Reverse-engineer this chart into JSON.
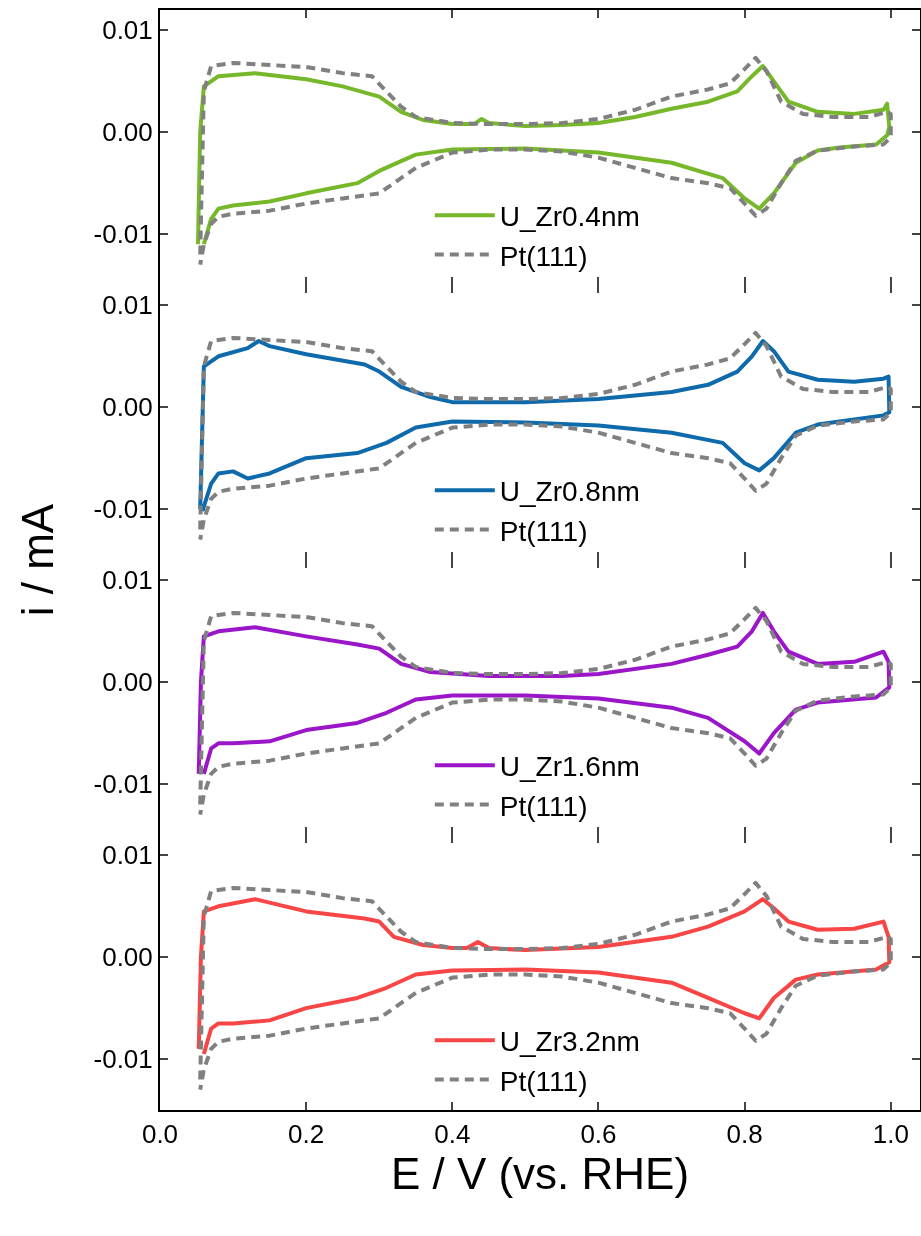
{
  "chart_data": [
    {
      "type": "line",
      "ylabel": "i / mA",
      "legend": "bottom",
      "tick_labels": "y",
      "xlim": [
        0,
        1.04
      ],
      "ylim": [
        -0.015,
        0.012
      ],
      "xticks": [
        {
          "value": 0,
          "label": null
        },
        {
          "value": 0.2,
          "label": null
        },
        {
          "value": 0.4,
          "label": null
        },
        {
          "value": 0.6,
          "label": null
        },
        {
          "value": 0.8,
          "label": null
        },
        {
          "value": 1,
          "label": null
        }
      ],
      "yticks": [
        {
          "value": -0.01,
          "label": "-0.01"
        },
        {
          "value": 0,
          "label": "0.00"
        },
        {
          "value": 0.01,
          "label": "0.01"
        }
      ],
      "series": [
        {
          "name": "U_Zr0.4nm",
          "color": "#76b82a",
          "line_style": "solid",
          "x": [
            0.052,
            0.055,
            0.06,
            0.08,
            0.13,
            0.2,
            0.25,
            0.3,
            0.33,
            0.36,
            0.4,
            0.43,
            0.44,
            0.45,
            0.5,
            0.55,
            0.6,
            0.65,
            0.7,
            0.75,
            0.79,
            0.81,
            0.825,
            0.84,
            0.86,
            0.9,
            0.95,
            0.99,
            0.995,
            0.998,
            0.995,
            0.98,
            0.93,
            0.9,
            0.87,
            0.84,
            0.82,
            0.8,
            0.77,
            0.7,
            0.6,
            0.5,
            0.4,
            0.35,
            0.3,
            0.27,
            0.2,
            0.15,
            0.1,
            0.08,
            0.07,
            0.06
          ],
          "values": [
            -0.011,
            0.0,
            0.0045,
            0.0055,
            0.0058,
            0.0052,
            0.0045,
            0.0035,
            0.002,
            0.0012,
            0.0008,
            0.0008,
            0.0013,
            0.0009,
            0.0006,
            0.0007,
            0.0009,
            0.0015,
            0.0023,
            0.003,
            0.004,
            0.0055,
            0.0065,
            0.005,
            0.003,
            0.002,
            0.0018,
            0.0022,
            0.0028,
            0.0005,
            -0.0003,
            -0.0012,
            -0.0015,
            -0.0018,
            -0.003,
            -0.006,
            -0.0075,
            -0.0065,
            -0.0045,
            -0.003,
            -0.002,
            -0.0016,
            -0.0017,
            -0.0022,
            -0.0038,
            -0.005,
            -0.006,
            -0.0068,
            -0.0072,
            -0.0075,
            -0.0085,
            -0.011
          ]
        },
        {
          "name": "Pt(111)",
          "color": "#808080",
          "line_style": "dashed",
          "x": [
            0.055,
            0.06,
            0.07,
            0.1,
            0.15,
            0.2,
            0.25,
            0.29,
            0.31,
            0.33,
            0.35,
            0.4,
            0.45,
            0.5,
            0.55,
            0.6,
            0.65,
            0.7,
            0.75,
            0.78,
            0.8,
            0.815,
            0.83,
            0.85,
            0.88,
            0.92,
            0.97,
            0.995,
            1.0,
            1.0,
            0.99,
            0.95,
            0.9,
            0.87,
            0.85,
            0.83,
            0.815,
            0.8,
            0.78,
            0.75,
            0.7,
            0.65,
            0.6,
            0.55,
            0.5,
            0.45,
            0.4,
            0.35,
            0.32,
            0.3,
            0.25,
            0.2,
            0.15,
            0.1,
            0.08,
            0.07,
            0.06,
            0.055
          ],
          "values": [
            -0.012,
            0.004,
            0.0065,
            0.0068,
            0.0066,
            0.0064,
            0.0058,
            0.0055,
            0.004,
            0.0025,
            0.0015,
            0.0009,
            0.0008,
            0.0008,
            0.0009,
            0.0013,
            0.0022,
            0.0035,
            0.0042,
            0.0048,
            0.0062,
            0.0073,
            0.006,
            0.003,
            0.0018,
            0.0015,
            0.0015,
            0.002,
            0.0018,
            -0.0005,
            -0.0012,
            -0.0014,
            -0.0018,
            -0.0028,
            -0.005,
            -0.0075,
            -0.0082,
            -0.007,
            -0.0055,
            -0.005,
            -0.0045,
            -0.0035,
            -0.0025,
            -0.0019,
            -0.0017,
            -0.0017,
            -0.002,
            -0.0035,
            -0.005,
            -0.006,
            -0.0065,
            -0.007,
            -0.0077,
            -0.008,
            -0.0083,
            -0.009,
            -0.011,
            -0.013
          ]
        }
      ]
    },
    {
      "type": "line",
      "legend": "bottom",
      "tick_labels": "y",
      "xlim": [
        0,
        1.04
      ],
      "ylim": [
        -0.015,
        0.012
      ],
      "xticks": [
        {
          "value": 0,
          "label": null
        },
        {
          "value": 0.2,
          "label": null
        },
        {
          "value": 0.4,
          "label": null
        },
        {
          "value": 0.6,
          "label": null
        },
        {
          "value": 0.8,
          "label": null
        },
        {
          "value": 1,
          "label": null
        }
      ],
      "yticks": [
        {
          "value": -0.01,
          "label": "-0.01"
        },
        {
          "value": 0,
          "label": "0.00"
        },
        {
          "value": 0.01,
          "label": "0.01"
        }
      ],
      "series": [
        {
          "name": "U_Zr0.8nm",
          "color": "#0e6aab",
          "line_style": "solid",
          "x": [
            0.055,
            0.06,
            0.08,
            0.12,
            0.135,
            0.15,
            0.2,
            0.28,
            0.3,
            0.33,
            0.37,
            0.4,
            0.5,
            0.6,
            0.7,
            0.75,
            0.79,
            0.81,
            0.825,
            0.84,
            0.86,
            0.9,
            0.95,
            0.99,
            0.997,
            0.998,
            0.99,
            0.95,
            0.9,
            0.87,
            0.84,
            0.82,
            0.8,
            0.77,
            0.7,
            0.6,
            0.5,
            0.4,
            0.35,
            0.31,
            0.27,
            0.2,
            0.15,
            0.12,
            0.1,
            0.08,
            0.07,
            0.058
          ],
          "values": [
            -0.01,
            0.004,
            0.005,
            0.0058,
            0.0065,
            0.006,
            0.0052,
            0.0042,
            0.0035,
            0.002,
            0.001,
            0.0005,
            0.0005,
            0.0008,
            0.0015,
            0.0022,
            0.0035,
            0.005,
            0.0065,
            0.0055,
            0.0035,
            0.0027,
            0.0025,
            0.0028,
            0.003,
            -0.0005,
            -0.0008,
            -0.0012,
            -0.0017,
            -0.0025,
            -0.005,
            -0.0062,
            -0.0055,
            -0.0035,
            -0.0025,
            -0.0018,
            -0.0015,
            -0.0014,
            -0.002,
            -0.0035,
            -0.0045,
            -0.005,
            -0.0065,
            -0.007,
            -0.0063,
            -0.0065,
            -0.0075,
            -0.0102
          ]
        },
        {
          "name": "Pt(111)",
          "color": "#808080",
          "line_style": "dashed",
          "x": [
            0.055,
            0.06,
            0.07,
            0.1,
            0.15,
            0.2,
            0.25,
            0.29,
            0.31,
            0.33,
            0.35,
            0.4,
            0.45,
            0.5,
            0.55,
            0.6,
            0.65,
            0.7,
            0.75,
            0.78,
            0.8,
            0.815,
            0.83,
            0.85,
            0.88,
            0.92,
            0.97,
            0.995,
            1.0,
            1.0,
            0.99,
            0.95,
            0.9,
            0.87,
            0.85,
            0.83,
            0.815,
            0.8,
            0.78,
            0.75,
            0.7,
            0.65,
            0.6,
            0.55,
            0.5,
            0.45,
            0.4,
            0.35,
            0.32,
            0.3,
            0.25,
            0.2,
            0.15,
            0.1,
            0.08,
            0.07,
            0.06,
            0.055
          ],
          "values": [
            -0.012,
            0.004,
            0.0065,
            0.0068,
            0.0066,
            0.0064,
            0.0058,
            0.0055,
            0.004,
            0.0025,
            0.0015,
            0.0009,
            0.0008,
            0.0008,
            0.0009,
            0.0013,
            0.0022,
            0.0035,
            0.0042,
            0.0048,
            0.0062,
            0.0073,
            0.006,
            0.003,
            0.0018,
            0.0015,
            0.0015,
            0.002,
            0.0018,
            -0.0005,
            -0.0012,
            -0.0014,
            -0.0018,
            -0.0028,
            -0.005,
            -0.0075,
            -0.0082,
            -0.007,
            -0.0055,
            -0.005,
            -0.0045,
            -0.0035,
            -0.0025,
            -0.0019,
            -0.0017,
            -0.0017,
            -0.002,
            -0.0035,
            -0.005,
            -0.006,
            -0.0065,
            -0.007,
            -0.0077,
            -0.008,
            -0.0083,
            -0.009,
            -0.011,
            -0.013
          ]
        }
      ]
    },
    {
      "type": "line",
      "legend": "bottom",
      "tick_labels": "y",
      "xlim": [
        0,
        1.04
      ],
      "ylim": [
        -0.015,
        0.012
      ],
      "xticks": [
        {
          "value": 0,
          "label": null
        },
        {
          "value": 0.2,
          "label": null
        },
        {
          "value": 0.4,
          "label": null
        },
        {
          "value": 0.6,
          "label": null
        },
        {
          "value": 0.8,
          "label": null
        },
        {
          "value": 1,
          "label": null
        }
      ],
      "yticks": [
        {
          "value": -0.01,
          "label": "-0.01"
        },
        {
          "value": 0,
          "label": "0.00"
        },
        {
          "value": 0.01,
          "label": "0.01"
        }
      ],
      "series": [
        {
          "name": "U_Zr1.6nm",
          "color": "#9b16c9",
          "line_style": "solid",
          "x": [
            0.053,
            0.056,
            0.06,
            0.08,
            0.13,
            0.2,
            0.27,
            0.3,
            0.33,
            0.37,
            0.45,
            0.55,
            0.6,
            0.7,
            0.75,
            0.79,
            0.81,
            0.825,
            0.84,
            0.86,
            0.9,
            0.95,
            0.99,
            0.997,
            0.998,
            0.98,
            0.9,
            0.87,
            0.84,
            0.82,
            0.8,
            0.75,
            0.7,
            0.6,
            0.5,
            0.4,
            0.35,
            0.31,
            0.27,
            0.2,
            0.15,
            0.1,
            0.08,
            0.07,
            0.06
          ],
          "values": [
            -0.009,
            0.0,
            0.0045,
            0.005,
            0.0054,
            0.0045,
            0.0037,
            0.0033,
            0.0018,
            0.001,
            0.0006,
            0.0006,
            0.0008,
            0.0018,
            0.0027,
            0.0035,
            0.005,
            0.0068,
            0.005,
            0.003,
            0.0018,
            0.002,
            0.003,
            0.002,
            -0.0005,
            -0.0015,
            -0.002,
            -0.0027,
            -0.005,
            -0.007,
            -0.0058,
            -0.0035,
            -0.0025,
            -0.0016,
            -0.0013,
            -0.0013,
            -0.0017,
            -0.003,
            -0.004,
            -0.0047,
            -0.0058,
            -0.006,
            -0.006,
            -0.0065,
            -0.009
          ]
        },
        {
          "name": "Pt(111)",
          "color": "#808080",
          "line_style": "dashed",
          "x": [
            0.055,
            0.06,
            0.07,
            0.1,
            0.15,
            0.2,
            0.25,
            0.29,
            0.31,
            0.33,
            0.35,
            0.4,
            0.45,
            0.5,
            0.55,
            0.6,
            0.65,
            0.7,
            0.75,
            0.78,
            0.8,
            0.815,
            0.83,
            0.85,
            0.88,
            0.92,
            0.97,
            0.995,
            1.0,
            1.0,
            0.99,
            0.95,
            0.9,
            0.87,
            0.85,
            0.83,
            0.815,
            0.8,
            0.78,
            0.75,
            0.7,
            0.65,
            0.6,
            0.55,
            0.5,
            0.45,
            0.4,
            0.35,
            0.32,
            0.3,
            0.25,
            0.2,
            0.15,
            0.1,
            0.08,
            0.07,
            0.06,
            0.055
          ],
          "values": [
            -0.012,
            0.004,
            0.0065,
            0.0068,
            0.0066,
            0.0064,
            0.0058,
            0.0055,
            0.004,
            0.0025,
            0.0015,
            0.0009,
            0.0008,
            0.0008,
            0.0009,
            0.0013,
            0.0022,
            0.0035,
            0.0042,
            0.0048,
            0.0062,
            0.0073,
            0.006,
            0.003,
            0.0018,
            0.0015,
            0.0015,
            0.002,
            0.0018,
            -0.0005,
            -0.0012,
            -0.0014,
            -0.0018,
            -0.0028,
            -0.005,
            -0.0075,
            -0.0082,
            -0.007,
            -0.0055,
            -0.005,
            -0.0045,
            -0.0035,
            -0.0025,
            -0.0019,
            -0.0017,
            -0.0017,
            -0.002,
            -0.0035,
            -0.005,
            -0.006,
            -0.0065,
            -0.007,
            -0.0077,
            -0.008,
            -0.0083,
            -0.009,
            -0.011,
            -0.013
          ]
        }
      ]
    },
    {
      "type": "line",
      "xlabel": "E / V (vs. RHE)",
      "legend": "bottom",
      "xlim": [
        0,
        1.04
      ],
      "ylim": [
        -0.015,
        0.012
      ],
      "xticks": [
        {
          "value": 0,
          "label": "0.0"
        },
        {
          "value": 0.2,
          "label": "0.2"
        },
        {
          "value": 0.4,
          "label": "0.4"
        },
        {
          "value": 0.6,
          "label": "0.6"
        },
        {
          "value": 0.8,
          "label": "0.8"
        },
        {
          "value": 1,
          "label": "1.0"
        }
      ],
      "yticks": [
        {
          "value": -0.01,
          "label": "-0.01"
        },
        {
          "value": 0,
          "label": "0.00"
        },
        {
          "value": 0.01,
          "label": "0.01"
        }
      ],
      "series": [
        {
          "name": "U_Zr3.2nm",
          "color": "#f84545",
          "line_style": "solid",
          "x": [
            0.053,
            0.056,
            0.06,
            0.08,
            0.13,
            0.2,
            0.28,
            0.3,
            0.32,
            0.36,
            0.4,
            0.42,
            0.435,
            0.45,
            0.5,
            0.6,
            0.7,
            0.75,
            0.8,
            0.825,
            0.84,
            0.86,
            0.9,
            0.95,
            0.99,
            0.997,
            0.998,
            0.98,
            0.9,
            0.87,
            0.84,
            0.82,
            0.8,
            0.75,
            0.7,
            0.6,
            0.5,
            0.4,
            0.35,
            0.31,
            0.27,
            0.2,
            0.15,
            0.1,
            0.08,
            0.07,
            0.06
          ],
          "values": [
            -0.009,
            0.0,
            0.0045,
            0.005,
            0.0057,
            0.0045,
            0.0038,
            0.0035,
            0.002,
            0.0012,
            0.0009,
            0.0009,
            0.0015,
            0.0009,
            0.0007,
            0.001,
            0.002,
            0.003,
            0.0045,
            0.0057,
            0.0048,
            0.0035,
            0.0027,
            0.0028,
            0.0035,
            0.002,
            -0.0005,
            -0.0012,
            -0.0017,
            -0.0022,
            -0.004,
            -0.006,
            -0.0055,
            -0.004,
            -0.0025,
            -0.0015,
            -0.0012,
            -0.0013,
            -0.0017,
            -0.003,
            -0.004,
            -0.005,
            -0.0062,
            -0.0065,
            -0.0065,
            -0.007,
            -0.0095
          ]
        },
        {
          "name": "Pt(111)",
          "color": "#808080",
          "line_style": "dashed",
          "x": [
            0.055,
            0.06,
            0.07,
            0.1,
            0.15,
            0.2,
            0.25,
            0.29,
            0.31,
            0.33,
            0.35,
            0.4,
            0.45,
            0.5,
            0.55,
            0.6,
            0.65,
            0.7,
            0.75,
            0.78,
            0.8,
            0.815,
            0.83,
            0.85,
            0.88,
            0.92,
            0.97,
            0.995,
            1.0,
            1.0,
            0.99,
            0.95,
            0.9,
            0.87,
            0.85,
            0.83,
            0.815,
            0.8,
            0.78,
            0.75,
            0.7,
            0.65,
            0.6,
            0.55,
            0.5,
            0.45,
            0.4,
            0.35,
            0.32,
            0.3,
            0.25,
            0.2,
            0.15,
            0.1,
            0.08,
            0.07,
            0.06,
            0.055
          ],
          "values": [
            -0.012,
            0.004,
            0.0065,
            0.0068,
            0.0066,
            0.0064,
            0.0058,
            0.0055,
            0.004,
            0.0025,
            0.0015,
            0.0009,
            0.0008,
            0.0008,
            0.0009,
            0.0013,
            0.0022,
            0.0035,
            0.0042,
            0.0048,
            0.0062,
            0.0073,
            0.006,
            0.003,
            0.0018,
            0.0015,
            0.0015,
            0.002,
            0.0018,
            -0.0005,
            -0.0012,
            -0.0014,
            -0.0018,
            -0.0028,
            -0.005,
            -0.0075,
            -0.0082,
            -0.007,
            -0.0055,
            -0.005,
            -0.0045,
            -0.0035,
            -0.0025,
            -0.0019,
            -0.0017,
            -0.0017,
            -0.002,
            -0.0035,
            -0.005,
            -0.006,
            -0.0065,
            -0.007,
            -0.0077,
            -0.008,
            -0.0083,
            -0.009,
            -0.011,
            -0.013
          ]
        }
      ]
    }
  ]
}
